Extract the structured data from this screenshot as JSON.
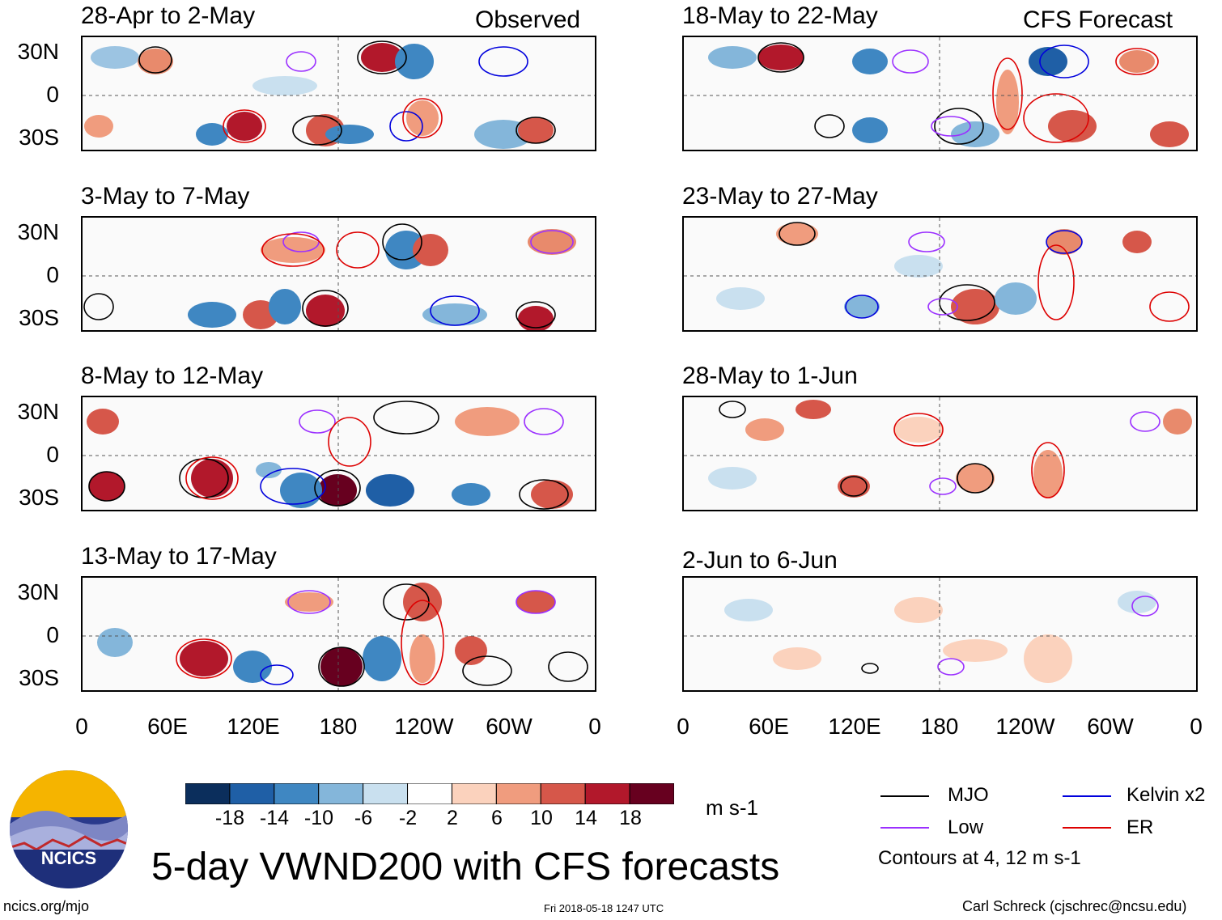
{
  "headers": {
    "left": "Observed",
    "right": "CFS Forecast"
  },
  "panels": [
    {
      "title": "28-Apr to 2-May",
      "column": "observed"
    },
    {
      "title": "3-May to 7-May",
      "column": "observed"
    },
    {
      "title": "8-May to 12-May",
      "column": "observed"
    },
    {
      "title": "13-May to 17-May",
      "column": "observed"
    },
    {
      "title": "18-May to 22-May",
      "column": "forecast"
    },
    {
      "title": "23-May to 27-May",
      "column": "forecast"
    },
    {
      "title": "28-May to 1-Jun",
      "column": "forecast"
    },
    {
      "title": "2-Jun to 6-Jun",
      "column": "forecast"
    }
  ],
  "lat_labels": [
    "30N",
    "0",
    "30S"
  ],
  "lon_labels": [
    "0",
    "60E",
    "120E",
    "180",
    "120W",
    "60W",
    "0"
  ],
  "colorbar": {
    "labels": [
      "-18",
      "-14",
      "-10",
      "-6",
      "-2",
      "2",
      "6",
      "10",
      "14",
      "18"
    ],
    "colors": [
      "#0b2e5c",
      "#1f5fa6",
      "#3f87c2",
      "#84b6da",
      "#c9e0ef",
      "#ffffff",
      "#fbd2bd",
      "#f09c7e",
      "#d6574a",
      "#b2182b",
      "#67001f"
    ],
    "units": "m s-1"
  },
  "legend": {
    "items": [
      {
        "label": "MJO",
        "color": "#000000"
      },
      {
        "label": "Kelvin x2",
        "color": "#0000dd"
      },
      {
        "label": "Low",
        "color": "#9b30ff"
      },
      {
        "label": "ER",
        "color": "#dd0000"
      }
    ],
    "note": "Contours at 4, 12 m s-1"
  },
  "logo": {
    "text": "NCICS"
  },
  "main_title": "5-day VWND200 with CFS forecasts",
  "footer": {
    "url": "ncics.org/mjo",
    "timestamp": "Fri 2018-05-18 1247 UTC",
    "credit": "Carl Schreck (cjschrec@ncsu.edu)"
  }
}
